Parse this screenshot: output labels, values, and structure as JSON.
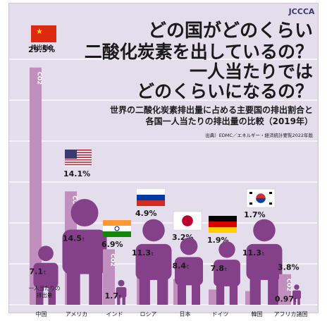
{
  "logo": "JCCCA",
  "title": {
    "lines": [
      "どの国がどのくらい",
      "二酸化炭素を出しているの？",
      "一人当たりでは",
      "どのくらいになるの？"
    ]
  },
  "subtitle": {
    "lines": [
      "世界の二酸化炭素排出量に占める主要国の排出割合と",
      "各国一人当たりの排出量の比較（2019年）"
    ]
  },
  "source": "出典）EDMC／エネルギー・経済統計要覧2022年版",
  "legend": {
    "share_label": "排出割合",
    "per_capita_label_lines": [
      "一人当たりの",
      "排出量"
    ],
    "unit": "t",
    "co2_label": "CO2"
  },
  "colors": {
    "bar": "#c18fbe",
    "bar_dark": "#9a5f98",
    "person": "#84418a",
    "gridline": "#ffffff"
  },
  "chart_data": {
    "type": "bar",
    "title": "",
    "categories": [
      "中国",
      "アメリカ",
      "インド",
      "ロシア",
      "日本",
      "ドイツ",
      "韓国",
      "アフリカ諸国"
    ],
    "series": [
      {
        "name": "排出割合",
        "unit": "%",
        "values": [
          29.5,
          14.1,
          6.9,
          4.9,
          3.2,
          1.9,
          1.7,
          3.8
        ]
      },
      {
        "name": "一人当たりの排出量",
        "unit": "t",
        "values": [
          7.1,
          14.5,
          1.7,
          11.3,
          8.4,
          7.8,
          11.3,
          0.97
        ]
      }
    ],
    "share_labels": [
      "29.5%",
      "14.1%",
      "6.9%",
      "4.9%",
      "3.2%",
      "1.9%",
      "1.7%",
      "3.8%"
    ],
    "per_capita_labels": [
      "7.1",
      "14.5",
      "1.7",
      "11.3",
      "8.4",
      "7.8",
      "11.3",
      "0.97"
    ],
    "flags": [
      "china",
      "usa",
      "india",
      "russia",
      "japan",
      "germany",
      "korea",
      ""
    ],
    "ylim": [
      0,
      30
    ],
    "grid": true
  }
}
